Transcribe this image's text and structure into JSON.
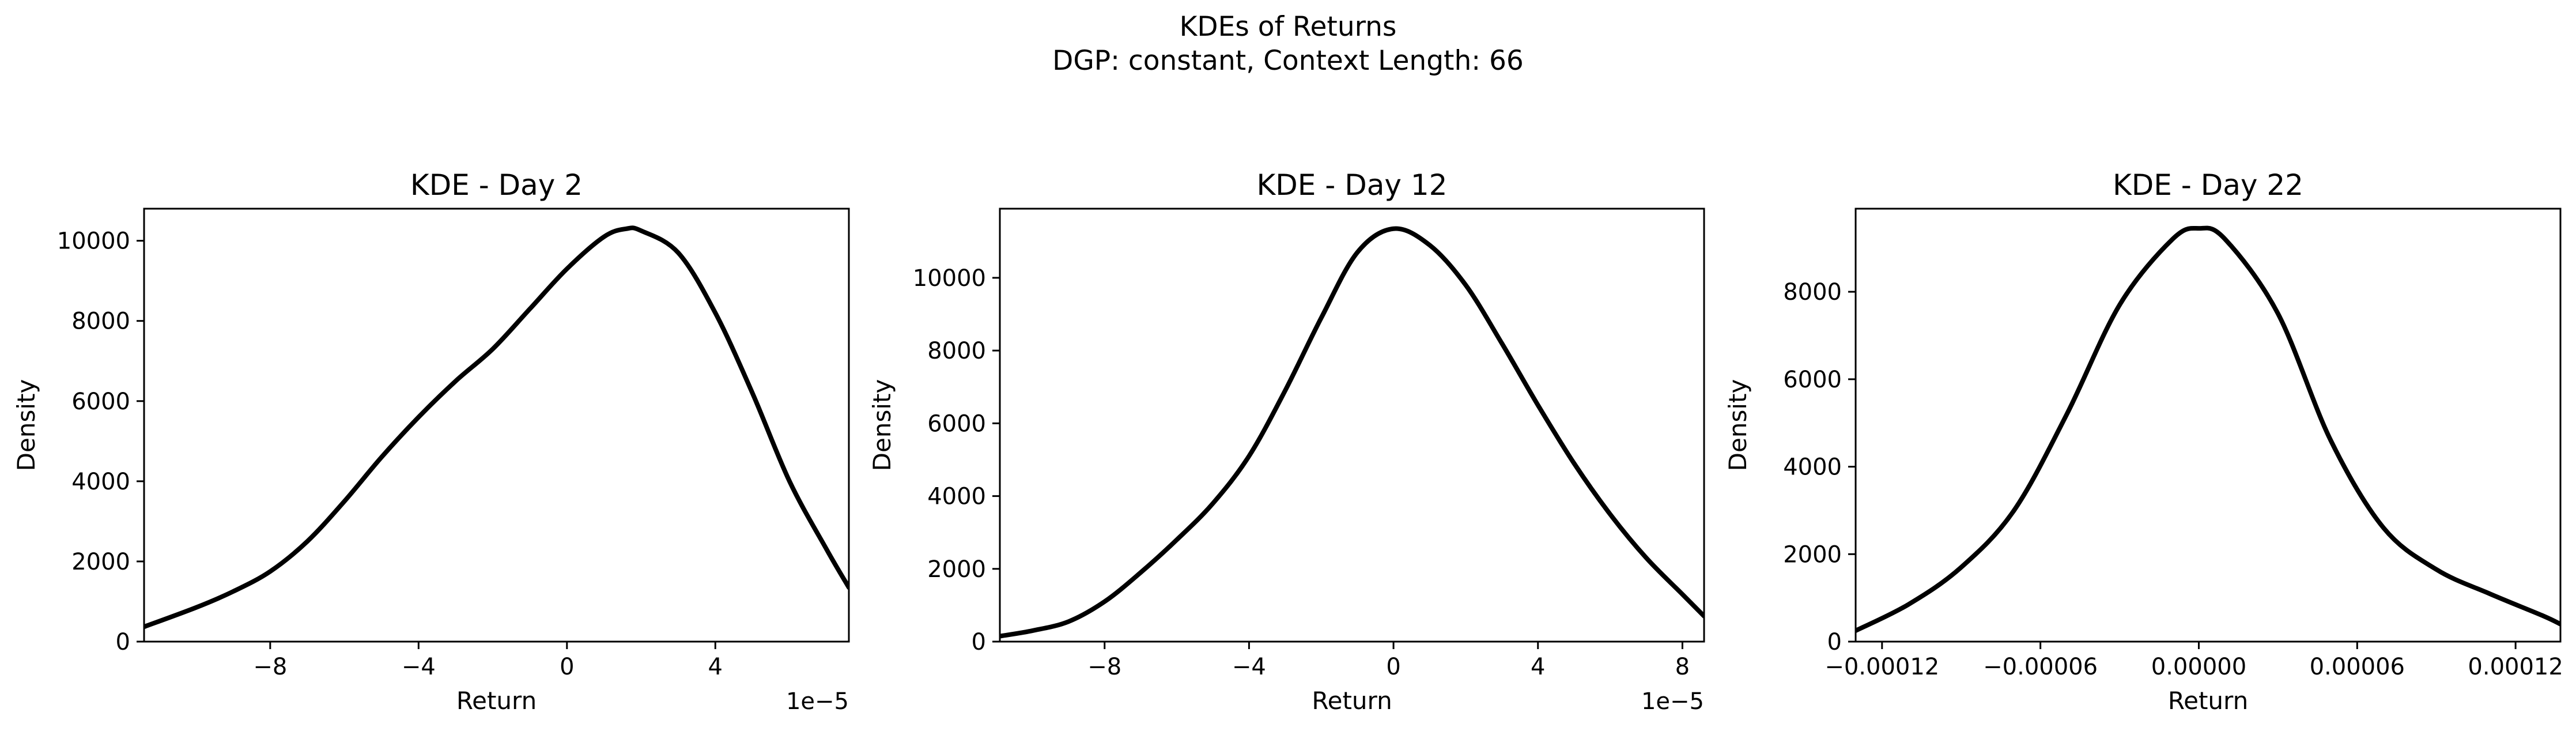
{
  "figure": {
    "title_line1": "KDEs of Returns",
    "title_line2": "DGP: constant, Context Length: 66"
  },
  "chart_data": [
    {
      "type": "line",
      "title": "KDE - Day 2",
      "xlabel": "Return",
      "ylabel": "Density",
      "x_offset_label": "1e−5",
      "xlim": [
        -11.4,
        7.6
      ],
      "ylim": [
        0,
        10800
      ],
      "x_ticks": [
        -8,
        -4,
        0,
        4
      ],
      "x_tick_labels": [
        "−8",
        "−4",
        "0",
        "4"
      ],
      "y_ticks": [
        0,
        2000,
        4000,
        6000,
        8000,
        10000
      ],
      "y_tick_labels": [
        "0",
        "2000",
        "4000",
        "6000",
        "8000",
        "10000"
      ],
      "grid": false,
      "color": "#000000",
      "series": [
        {
          "x": [
            -11.4,
            -10,
            -9,
            -8,
            -7,
            -6,
            -5,
            -4,
            -3,
            -2,
            -1,
            0,
            1,
            1.6,
            2,
            3,
            4,
            5,
            6,
            7,
            7.6
          ],
          "y": [
            370,
            850,
            1250,
            1750,
            2500,
            3500,
            4600,
            5600,
            6500,
            7300,
            8300,
            9300,
            10100,
            10300,
            10250,
            9700,
            8200,
            6200,
            4000,
            2300,
            1350
          ]
        }
      ]
    },
    {
      "type": "line",
      "title": "KDE - Day 12",
      "xlabel": "Return",
      "ylabel": "Density",
      "x_offset_label": "1e−5",
      "xlim": [
        -10.9,
        8.6
      ],
      "ylim": [
        0,
        11900
      ],
      "x_ticks": [
        -8,
        -4,
        0,
        4,
        8
      ],
      "x_tick_labels": [
        "−8",
        "−4",
        "0",
        "4",
        "8"
      ],
      "y_ticks": [
        0,
        2000,
        4000,
        6000,
        8000,
        10000
      ],
      "y_tick_labels": [
        "0",
        "2000",
        "4000",
        "6000",
        "8000",
        "10000"
      ],
      "grid": false,
      "color": "#000000",
      "series": [
        {
          "x": [
            -10.9,
            -10,
            -9,
            -8,
            -7,
            -6,
            -5,
            -4,
            -3,
            -2,
            -1,
            0,
            1,
            2,
            3,
            4,
            5,
            6,
            7,
            8,
            8.6
          ],
          "y": [
            150,
            300,
            550,
            1100,
            1900,
            2800,
            3800,
            5100,
            6900,
            8900,
            10700,
            11350,
            10900,
            9800,
            8200,
            6500,
            4900,
            3500,
            2300,
            1300,
            700
          ]
        }
      ]
    },
    {
      "type": "line",
      "title": "KDE - Day 22",
      "xlabel": "Return",
      "ylabel": "Density",
      "xlim": [
        -0.00013,
        0.000137
      ],
      "ylim": [
        0,
        9900
      ],
      "x_ticks": [
        -0.00012,
        -6e-05,
        0,
        6e-05,
        0.00012
      ],
      "x_tick_labels": [
        "−0.00012",
        "−0.00006",
        "0.00000",
        "0.00006",
        "0.00012"
      ],
      "y_ticks": [
        0,
        2000,
        4000,
        6000,
        8000
      ],
      "y_tick_labels": [
        "0",
        "2000",
        "4000",
        "6000",
        "8000"
      ],
      "grid": false,
      "color": "#000000",
      "series": [
        {
          "x": [
            -0.00013,
            -0.00011,
            -9e-05,
            -7e-05,
            -5e-05,
            -3e-05,
            -1e-05,
            0,
            1e-05,
            3e-05,
            5e-05,
            7e-05,
            9e-05,
            0.00011,
            0.00013,
            0.000137
          ],
          "y": [
            250,
            850,
            1700,
            3000,
            5200,
            7700,
            9200,
            9450,
            9200,
            7500,
            4600,
            2600,
            1650,
            1100,
            600,
            400
          ]
        }
      ]
    }
  ]
}
